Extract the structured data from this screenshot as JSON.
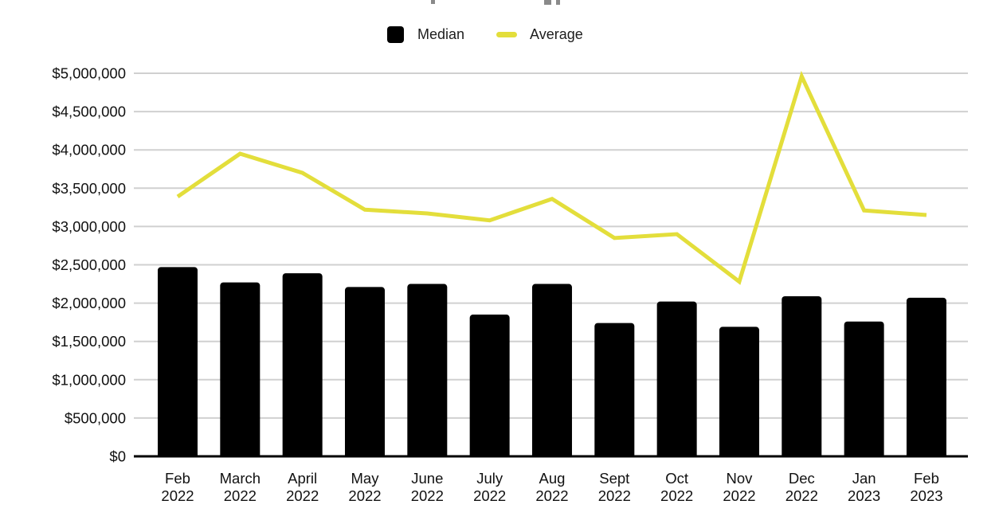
{
  "chart_data": {
    "type": "combo",
    "subtypes": [
      "bar",
      "line"
    ],
    "title": "",
    "title_note": "title cropped out of screenshot; only descender fragments visible at top edge",
    "legend_position": "top-center",
    "grid": true,
    "ylim": [
      0,
      5000000
    ],
    "ytick_step": 500000,
    "ytick_labels": [
      "$0",
      "$500,000",
      "$1,000,000",
      "$1,500,000",
      "$2,000,000",
      "$2,500,000",
      "$3,000,000",
      "$3,500,000",
      "$4,000,000",
      "$4,500,000",
      "$5,000,000"
    ],
    "categories_line1": [
      "Feb",
      "March",
      "April",
      "May",
      "June",
      "July",
      "Aug",
      "Sept",
      "Oct",
      "Nov",
      "Dec",
      "Jan",
      "Feb"
    ],
    "categories_line2": [
      "2022",
      "2022",
      "2022",
      "2022",
      "2022",
      "2022",
      "2022",
      "2022",
      "2022",
      "2022",
      "2022",
      "2023",
      "2023"
    ],
    "series": [
      {
        "name": "Median",
        "type": "bar",
        "color": "#000000",
        "values": [
          2470000,
          2270000,
          2390000,
          2210000,
          2250000,
          1850000,
          2250000,
          1740000,
          2020000,
          1690000,
          2090000,
          1760000,
          2070000
        ]
      },
      {
        "name": "Average",
        "type": "line",
        "color": "#E3DE3B",
        "values": [
          3390000,
          3950000,
          3700000,
          3220000,
          3170000,
          3080000,
          3360000,
          2850000,
          2900000,
          2280000,
          4960000,
          3210000,
          3150000
        ]
      }
    ],
    "colors": {
      "gridline": "#D0D0D0",
      "axis": "#000000",
      "tick_text": "#111111",
      "legend_text": "#1d1d1d",
      "background": "#ffffff"
    }
  }
}
